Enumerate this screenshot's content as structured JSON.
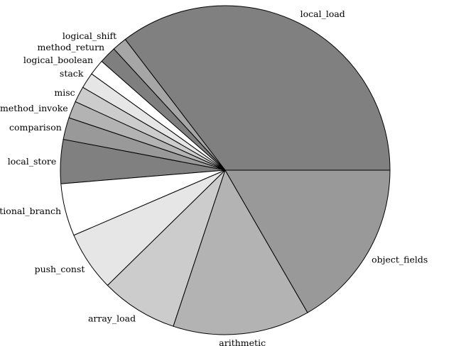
{
  "chart_data": {
    "type": "pie",
    "title": "",
    "categories": [
      "local_load",
      "logical_shift",
      "method_return",
      "logical_boolean",
      "stack",
      "misc",
      "method_invoke",
      "comparison",
      "local_store",
      "conditional_branch",
      "push_const",
      "array_load",
      "arithmetic",
      "object_fields"
    ],
    "values": [
      29.5,
      1.2,
      1.4,
      1.3,
      1.3,
      1.3,
      1.4,
      1.8,
      3.6,
      4.3,
      4.9,
      6.3,
      11.2,
      13.9
    ],
    "unit": "",
    "start": "3 o'clock",
    "direction": "counterclockwise",
    "colors": [
      "#808080",
      "#a6a6a6",
      "#7f7f7f",
      "#ffffff",
      "#e6e6e6",
      "#cccccc",
      "#b3b3b3",
      "#999999",
      "#808080",
      "#ffffff",
      "#e6e6e6",
      "#cccccc",
      "#b3b3b3",
      "#999999"
    ]
  }
}
